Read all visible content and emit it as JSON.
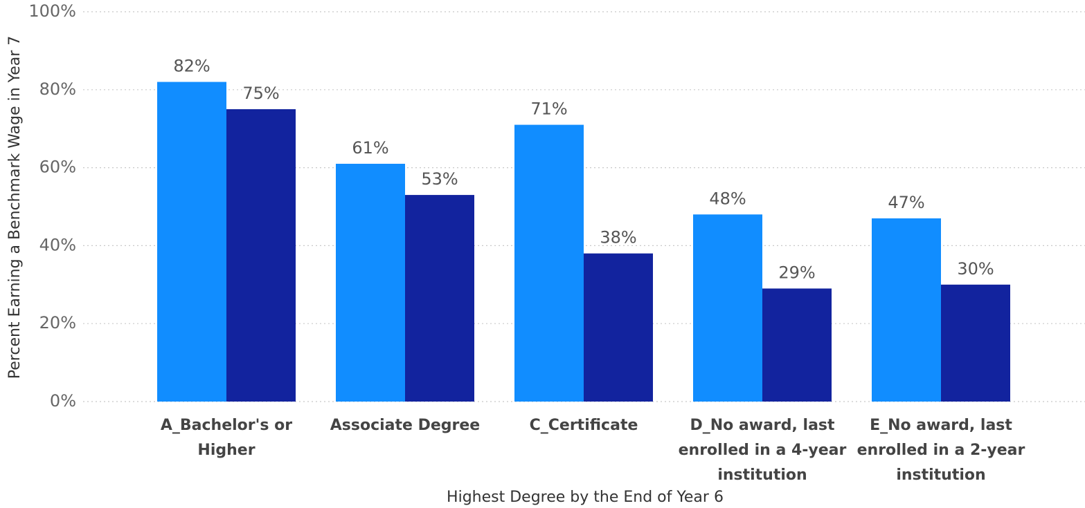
{
  "chart_data": {
    "type": "bar",
    "x_label": "Highest Degree by the End of Year 6",
    "y_label": "Percent Earning a Benchmark Wage in Year 7",
    "categories": [
      "A_Bachelor's or Higher",
      "Associate Degree",
      "C_Certificate",
      "D_No award, last enrolled in a 4-year institution",
      "E_No award, last enrolled in a 2-year institution"
    ],
    "series": [
      {
        "color": "#118dff",
        "values": [
          82,
          61,
          71,
          48,
          47
        ],
        "value_labels": [
          "82%",
          "61%",
          "71%",
          "48%",
          "47%"
        ]
      },
      {
        "color": "#12239e",
        "values": [
          75,
          53,
          38,
          29,
          30
        ],
        "value_labels": [
          "75%",
          "53%",
          "38%",
          "29%",
          "30%"
        ]
      }
    ],
    "ylim": [
      0,
      100
    ],
    "yticks": [
      {
        "value": 0,
        "label": "0%"
      },
      {
        "value": 20,
        "label": "20%"
      },
      {
        "value": 40,
        "label": "40%"
      },
      {
        "value": 60,
        "label": "60%"
      },
      {
        "value": 80,
        "label": "80%"
      },
      {
        "value": 100,
        "label": "100%"
      }
    ],
    "grid": true
  }
}
